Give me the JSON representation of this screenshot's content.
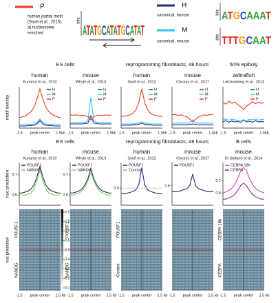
{
  "motifs": {
    "logo_axis": "bits",
    "items": [
      {
        "name": "P",
        "color": "#e8391d",
        "description": [
          "human partial motif",
          "(Soufi et al., 2015),",
          "at nucleosome",
          "enriched"
        ],
        "logo": "ATATGCATATGCATAT"
      },
      {
        "name": "H",
        "color": "#1f2a8c",
        "description": [
          "canonical, human"
        ],
        "logo": "ATGCAAAT"
      },
      {
        "name": "M",
        "color": "#29c5f0",
        "description": [
          "canonical, mouse"
        ],
        "logo": "TTTGCAAT"
      }
    ]
  },
  "row1": {
    "y_label": "motif density",
    "x_labels": [
      "-1.5",
      "peak center",
      "1.5kb"
    ],
    "groups": [
      {
        "label": "ES cells",
        "panels": [
          {
            "species": "human",
            "citation": "Kunarso et al., 2010",
            "ylim": [
              0,
              1
            ],
            "series": [
              {
                "name": "H",
                "color": "#1f2a8c",
                "values": [
                  0.05,
                  0.05,
                  0.05,
                  0.06,
                  0.06,
                  0.07,
                  0.1,
                  0.18,
                  0.1,
                  0.07,
                  0.06,
                  0.06,
                  0.05,
                  0.05,
                  0.05
                ]
              },
              {
                "name": "M",
                "color": "#29c5f0",
                "values": [
                  0.08,
                  0.08,
                  0.08,
                  0.09,
                  0.09,
                  0.1,
                  0.13,
                  0.22,
                  0.13,
                  0.1,
                  0.09,
                  0.09,
                  0.08,
                  0.08,
                  0.08
                ]
              },
              {
                "name": "P",
                "color": "#e8391d",
                "values": [
                  0.25,
                  0.27,
                  0.3,
                  0.34,
                  0.4,
                  0.5,
                  0.7,
                  0.95,
                  0.7,
                  0.5,
                  0.4,
                  0.34,
                  0.3,
                  0.27,
                  0.25
                ]
              }
            ]
          },
          {
            "species": "mouse",
            "citation": "Whyte et al., 2013",
            "ylim": [
              0,
              1
            ],
            "series": [
              {
                "name": "H",
                "color": "#1f2a8c",
                "values": [
                  0.1,
                  0.1,
                  0.1,
                  0.1,
                  0.1,
                  0.11,
                  0.12,
                  0.3,
                  0.12,
                  0.11,
                  0.1,
                  0.1,
                  0.1,
                  0.1,
                  0.1
                ]
              },
              {
                "name": "M",
                "color": "#29c5f0",
                "values": [
                  0.13,
                  0.13,
                  0.13,
                  0.13,
                  0.14,
                  0.14,
                  0.18,
                  0.75,
                  0.18,
                  0.14,
                  0.14,
                  0.13,
                  0.13,
                  0.13,
                  0.13
                ]
              },
              {
                "name": "P",
                "color": "#e8391d",
                "values": [
                  0.32,
                  0.31,
                  0.32,
                  0.3,
                  0.31,
                  0.3,
                  0.28,
                  0.2,
                  0.28,
                  0.3,
                  0.31,
                  0.3,
                  0.32,
                  0.31,
                  0.32
                ]
              }
            ]
          }
        ]
      },
      {
        "label": "reprogramming fibroblasts, 48 hours",
        "panels": [
          {
            "species": "human",
            "citation": "Soufi et al., 2012",
            "ylim": [
              0,
              1
            ],
            "series": [
              {
                "name": "H",
                "color": "#1f2a8c",
                "values": [
                  0.07,
                  0.07,
                  0.07,
                  0.07,
                  0.08,
                  0.08,
                  0.09,
                  0.12,
                  0.09,
                  0.08,
                  0.08,
                  0.07,
                  0.07,
                  0.07,
                  0.07
                ]
              },
              {
                "name": "M",
                "color": "#29c5f0",
                "values": [
                  0.1,
                  0.1,
                  0.1,
                  0.1,
                  0.1,
                  0.11,
                  0.12,
                  0.15,
                  0.12,
                  0.11,
                  0.1,
                  0.1,
                  0.1,
                  0.1,
                  0.1
                ]
              },
              {
                "name": "P",
                "color": "#e8391d",
                "values": [
                  0.28,
                  0.29,
                  0.3,
                  0.32,
                  0.36,
                  0.44,
                  0.62,
                  0.95,
                  0.62,
                  0.44,
                  0.36,
                  0.32,
                  0.3,
                  0.29,
                  0.28
                ]
              }
            ]
          },
          {
            "species": "mouse",
            "citation": "Chronis et al., 2017",
            "ylim": [
              0,
              1
            ],
            "series": [
              {
                "name": "H",
                "color": "#1f2a8c",
                "values": [
                  0.08,
                  0.08,
                  0.08,
                  0.08,
                  0.08,
                  0.08,
                  0.09,
                  0.1,
                  0.09,
                  0.08,
                  0.08,
                  0.08,
                  0.08,
                  0.08,
                  0.08
                ]
              },
              {
                "name": "M",
                "color": "#29c5f0",
                "values": [
                  0.12,
                  0.12,
                  0.12,
                  0.12,
                  0.12,
                  0.12,
                  0.13,
                  0.2,
                  0.13,
                  0.12,
                  0.12,
                  0.12,
                  0.12,
                  0.12,
                  0.12
                ]
              },
              {
                "name": "P",
                "color": "#e8391d",
                "values": [
                  0.32,
                  0.33,
                  0.31,
                  0.32,
                  0.3,
                  0.27,
                  0.22,
                  0.15,
                  0.22,
                  0.27,
                  0.3,
                  0.32,
                  0.31,
                  0.33,
                  0.32
                ]
              }
            ]
          }
        ]
      },
      {
        "label": "50% epiboly",
        "panels": [
          {
            "species": "zebrafish",
            "citation": "Leichsenring et al., 2013",
            "ylim": [
              0,
              1
            ],
            "series": [
              {
                "name": "H",
                "color": "#1f2a8c",
                "values": [
                  0.15,
                  0.18,
                  0.14,
                  0.17,
                  0.15,
                  0.16,
                  0.14,
                  0.2,
                  0.15,
                  0.17,
                  0.14,
                  0.18,
                  0.15,
                  0.16,
                  0.15
                ]
              },
              {
                "name": "M",
                "color": "#29c5f0",
                "values": [
                  0.2,
                  0.22,
                  0.19,
                  0.21,
                  0.2,
                  0.19,
                  0.18,
                  0.17,
                  0.19,
                  0.21,
                  0.2,
                  0.22,
                  0.19,
                  0.21,
                  0.2
                ]
              },
              {
                "name": "P",
                "color": "#e8391d",
                "values": [
                  0.62,
                  0.58,
                  0.65,
                  0.6,
                  0.63,
                  0.57,
                  0.52,
                  0.45,
                  0.53,
                  0.58,
                  0.64,
                  0.59,
                  0.63,
                  0.6,
                  0.62
                ]
              }
            ]
          }
        ]
      }
    ]
  },
  "row2": {
    "y_label": "nuc prediction",
    "heatmap_y_label": "nuc prediction",
    "x_labels": [
      "-1.5",
      "peak center",
      "1.5 kb"
    ],
    "colorbar_ticks": [
      0.9,
      0.8,
      0.7,
      0.6,
      0.5,
      0.4,
      0.3,
      0.2,
      0.1
    ],
    "groups": [
      {
        "label": "ES cells",
        "panels": [
          {
            "species": "human",
            "citation": "Kunarso et al., 2010",
            "ylim": [
              0.55,
              0.76
            ],
            "yticks": [
              0.6,
              0.7
            ],
            "heatmap_labels": [
              "POU5F1",
              "NANOG"
            ],
            "series": [
              {
                "name": "POU5F1",
                "color": "#1f2a7a",
                "values": [
                  0.61,
                  0.61,
                  0.615,
                  0.62,
                  0.63,
                  0.65,
                  0.69,
                  0.74,
                  0.69,
                  0.65,
                  0.63,
                  0.62,
                  0.615,
                  0.61,
                  0.61
                ]
              },
              {
                "name": "NANOG",
                "color": "#7ccf4e",
                "values": [
                  0.6,
                  0.6,
                  0.6,
                  0.605,
                  0.61,
                  0.63,
                  0.67,
                  0.72,
                  0.67,
                  0.63,
                  0.61,
                  0.605,
                  0.6,
                  0.6,
                  0.6
                ]
              }
            ]
          },
          {
            "species": "mouse",
            "citation": "Whyte et al., 2013",
            "ylim": [
              0.55,
              0.76
            ],
            "yticks": [
              0.6,
              0.7
            ],
            "heatmap_labels": [
              "POU5F1",
              "NANOG"
            ],
            "series": [
              {
                "name": "POU5F1",
                "color": "#1f2a7a",
                "values": [
                  0.61,
                  0.61,
                  0.615,
                  0.62,
                  0.63,
                  0.65,
                  0.68,
                  0.73,
                  0.68,
                  0.65,
                  0.63,
                  0.62,
                  0.615,
                  0.61,
                  0.61
                ]
              },
              {
                "name": "NANOG",
                "color": "#7ccf4e",
                "values": [
                  0.6,
                  0.6,
                  0.605,
                  0.61,
                  0.62,
                  0.64,
                  0.67,
                  0.71,
                  0.67,
                  0.64,
                  0.62,
                  0.61,
                  0.605,
                  0.6,
                  0.6
                ]
              }
            ]
          }
        ]
      },
      {
        "label": "reprogramming fibroblasts, 48 hours",
        "panels": [
          {
            "species": "human",
            "citation": "Soufi et al., 2012",
            "ylim": [
              0.5,
              0.75
            ],
            "yticks": [
              0.6
            ],
            "heatmap_labels": [
              "POU5F1",
              "Control"
            ],
            "series": [
              {
                "name": "POU5F1",
                "color": "#1f2a7a",
                "values": [
                  0.57,
                  0.57,
                  0.57,
                  0.575,
                  0.58,
                  0.59,
                  0.62,
                  0.72,
                  0.62,
                  0.59,
                  0.58,
                  0.575,
                  0.57,
                  0.57,
                  0.57
                ]
              },
              {
                "name": "Control",
                "color": "#aaaaaa",
                "style": "dotted",
                "values": [
                  0.6,
                  0.6,
                  0.6,
                  0.6,
                  0.6,
                  0.6,
                  0.6,
                  0.6,
                  0.6,
                  0.6,
                  0.6,
                  0.6,
                  0.6,
                  0.6,
                  0.6
                ]
              }
            ]
          },
          {
            "species": "mouse",
            "citation": "Chronis et al., 2017",
            "ylim": [
              0.5,
              0.72
            ],
            "yticks": [
              0.6
            ],
            "heatmap_labels": [],
            "series": [
              {
                "name": "POU5F1",
                "color": "#1f2a7a",
                "values": [
                  0.57,
                  0.57,
                  0.57,
                  0.575,
                  0.58,
                  0.585,
                  0.6,
                  0.66,
                  0.6,
                  0.585,
                  0.58,
                  0.575,
                  0.57,
                  0.57,
                  0.57
                ]
              }
            ]
          }
        ]
      },
      {
        "label": "B cells",
        "panels": [
          {
            "species": "mouse",
            "citation": "Di Stefano  et al., 2014",
            "ylim": [
              0.5,
              0.85
            ],
            "yticks": [
              0.6,
              0.7
            ],
            "heatmap_labels": [
              "CEBPA 18h",
              "CEBPA"
            ],
            "series": [
              {
                "name": "CEBPA 18h",
                "color": "#d63ad6",
                "values": [
                  0.6,
                  0.61,
                  0.62,
                  0.64,
                  0.67,
                  0.72,
                  0.78,
                  0.81,
                  0.78,
                  0.72,
                  0.67,
                  0.64,
                  0.62,
                  0.61,
                  0.6
                ]
              },
              {
                "name": "CEBPA",
                "color": "#8a2a9e",
                "values": [
                  0.55,
                  0.55,
                  0.56,
                  0.57,
                  0.59,
                  0.62,
                  0.66,
                  0.68,
                  0.66,
                  0.62,
                  0.59,
                  0.57,
                  0.56,
                  0.55,
                  0.55
                ]
              }
            ]
          }
        ]
      }
    ]
  }
}
